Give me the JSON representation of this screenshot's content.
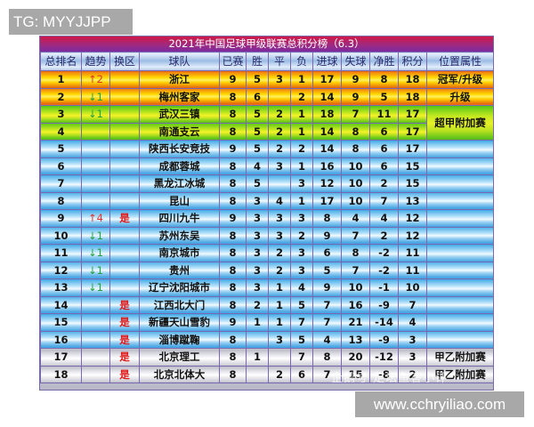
{
  "watermarks": {
    "top_left": "TG: MYYJJPP",
    "bottom_right": "www.cchryiliao.com",
    "faint_overlay": "企鹅号 足坛鱼答小评"
  },
  "table": {
    "title": "2021年中国足球甲级联赛总积分榜（6.3）",
    "headers": [
      "总排名",
      "趋势",
      "换区",
      "球队",
      "已赛",
      "胜",
      "平",
      "负",
      "进球",
      "失球",
      "净胜",
      "积分",
      "位置属性"
    ],
    "colors": {
      "up": "#e03030",
      "down": "#20a040",
      "swap": "#e01818"
    },
    "rows": [
      {
        "rank": "1",
        "trend": "↑2",
        "trend_dir": "up",
        "swap": "",
        "team": "浙江",
        "played": "9",
        "w": "5",
        "d": "3",
        "l": "1",
        "gf": "17",
        "ga": "9",
        "gd": "8",
        "pts": "18",
        "status": "冠军/升级",
        "band": "gold"
      },
      {
        "rank": "2",
        "trend": "↓1",
        "trend_dir": "down",
        "swap": "",
        "team": "梅州客家",
        "played": "8",
        "w": "6",
        "d": "",
        "l": "2",
        "gf": "14",
        "ga": "9",
        "gd": "5",
        "pts": "18",
        "status": "升级",
        "band": "gold"
      },
      {
        "rank": "3",
        "trend": "↓1",
        "trend_dir": "down",
        "swap": "",
        "team": "武汉三镇",
        "played": "8",
        "w": "5",
        "d": "2",
        "l": "1",
        "gf": "18",
        "ga": "7",
        "gd": "11",
        "pts": "17",
        "status": "超甲附加赛",
        "band": "green"
      },
      {
        "rank": "4",
        "trend": "",
        "trend_dir": "",
        "swap": "",
        "team": "南通支云",
        "played": "8",
        "w": "5",
        "d": "2",
        "l": "1",
        "gf": "14",
        "ga": "8",
        "gd": "6",
        "pts": "17",
        "status": "",
        "band": "green"
      },
      {
        "rank": "5",
        "trend": "",
        "trend_dir": "",
        "swap": "",
        "team": "陕西长安竞技",
        "played": "9",
        "w": "5",
        "d": "2",
        "l": "2",
        "gf": "14",
        "ga": "8",
        "gd": "6",
        "pts": "17",
        "status": "",
        "band": "blue"
      },
      {
        "rank": "6",
        "trend": "",
        "trend_dir": "",
        "swap": "",
        "team": "成都蓉城",
        "played": "8",
        "w": "4",
        "d": "3",
        "l": "1",
        "gf": "16",
        "ga": "10",
        "gd": "6",
        "pts": "15",
        "status": "",
        "band": "blue"
      },
      {
        "rank": "7",
        "trend": "",
        "trend_dir": "",
        "swap": "",
        "team": "黑龙江冰城",
        "played": "8",
        "w": "5",
        "d": "",
        "l": "3",
        "gf": "12",
        "ga": "10",
        "gd": "2",
        "pts": "15",
        "status": "",
        "band": "blue"
      },
      {
        "rank": "8",
        "trend": "",
        "trend_dir": "",
        "swap": "",
        "team": "昆山",
        "played": "8",
        "w": "3",
        "d": "4",
        "l": "1",
        "gf": "17",
        "ga": "10",
        "gd": "7",
        "pts": "13",
        "status": "",
        "band": "blue"
      },
      {
        "rank": "9",
        "trend": "↑4",
        "trend_dir": "up",
        "swap": "是",
        "team": "四川九牛",
        "played": "9",
        "w": "3",
        "d": "3",
        "l": "3",
        "gf": "8",
        "ga": "4",
        "gd": "4",
        "pts": "12",
        "status": "",
        "band": "blue"
      },
      {
        "rank": "10",
        "trend": "↓1",
        "trend_dir": "down",
        "swap": "",
        "team": "苏州东吴",
        "played": "8",
        "w": "3",
        "d": "3",
        "l": "2",
        "gf": "9",
        "ga": "7",
        "gd": "2",
        "pts": "12",
        "status": "",
        "band": "blue"
      },
      {
        "rank": "11",
        "trend": "↓1",
        "trend_dir": "down",
        "swap": "",
        "team": "南京城市",
        "played": "8",
        "w": "3",
        "d": "2",
        "l": "3",
        "gf": "6",
        "ga": "8",
        "gd": "-2",
        "pts": "11",
        "status": "",
        "band": "blue"
      },
      {
        "rank": "12",
        "trend": "↓1",
        "trend_dir": "down",
        "swap": "",
        "team": "贵州",
        "played": "8",
        "w": "3",
        "d": "2",
        "l": "3",
        "gf": "5",
        "ga": "7",
        "gd": "-2",
        "pts": "11",
        "status": "",
        "band": "blue"
      },
      {
        "rank": "13",
        "trend": "↓1",
        "trend_dir": "down",
        "swap": "",
        "team": "辽宁沈阳城市",
        "played": "8",
        "w": "3",
        "d": "1",
        "l": "4",
        "gf": "9",
        "ga": "10",
        "gd": "-1",
        "pts": "10",
        "status": "",
        "band": "blue"
      },
      {
        "rank": "14",
        "trend": "",
        "trend_dir": "",
        "swap": "是",
        "team": "江西北大门",
        "played": "8",
        "w": "2",
        "d": "1",
        "l": "5",
        "gf": "7",
        "ga": "16",
        "gd": "-9",
        "pts": "7",
        "status": "",
        "band": "blue"
      },
      {
        "rank": "15",
        "trend": "",
        "trend_dir": "",
        "swap": "是",
        "team": "新疆天山雪豹",
        "played": "9",
        "w": "1",
        "d": "1",
        "l": "7",
        "gf": "7",
        "ga": "21",
        "gd": "-14",
        "pts": "4",
        "status": "",
        "band": "blue"
      },
      {
        "rank": "16",
        "trend": "",
        "trend_dir": "",
        "swap": "是",
        "team": "淄博蹴鞠",
        "played": "8",
        "w": "",
        "d": "3",
        "l": "5",
        "gf": "4",
        "ga": "13",
        "gd": "-9",
        "pts": "3",
        "status": "",
        "band": "blue"
      },
      {
        "rank": "17",
        "trend": "",
        "trend_dir": "",
        "swap": "是",
        "team": "北京理工",
        "played": "8",
        "w": "1",
        "d": "",
        "l": "7",
        "gf": "8",
        "ga": "20",
        "gd": "-12",
        "pts": "3",
        "status": "甲乙附加赛",
        "band": "silver"
      },
      {
        "rank": "18",
        "trend": "",
        "trend_dir": "",
        "swap": "是",
        "team": "北京北体大",
        "played": "8",
        "w": "",
        "d": "2",
        "l": "6",
        "gf": "7",
        "ga": "15",
        "gd": "-8",
        "pts": "2",
        "status": "甲乙附加赛",
        "band": "silver"
      }
    ]
  }
}
